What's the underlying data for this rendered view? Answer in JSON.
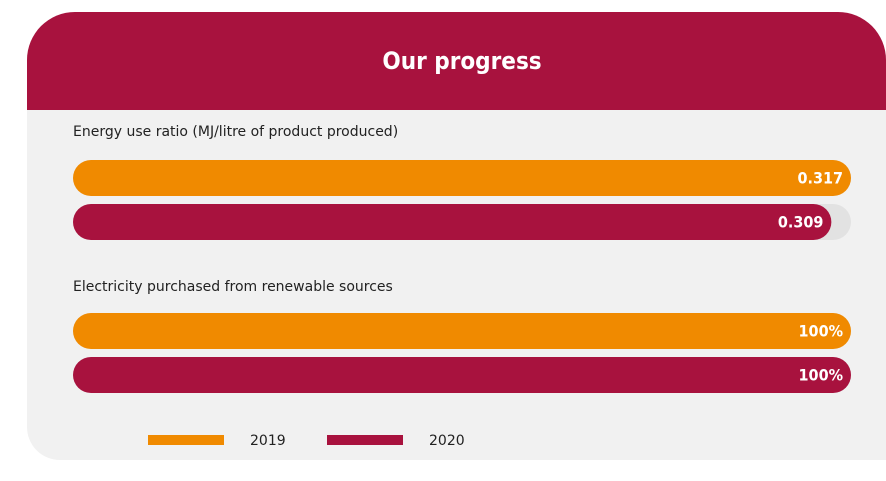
{
  "title": "Our progress",
  "chart_data": [
    {
      "type": "bar",
      "orientation": "horizontal",
      "title": "Energy use ratio (MJ/litre of product produced)",
      "xlim": [
        0,
        0.317
      ],
      "series": [
        {
          "name": "2019",
          "color": "#f08a00",
          "values": [
            0.317
          ]
        },
        {
          "name": "2020",
          "color": "#a8123e",
          "values": [
            0.309
          ]
        }
      ]
    },
    {
      "type": "bar",
      "orientation": "horizontal",
      "title": "Electricity purchased from renewable sources",
      "xlim": [
        0,
        100
      ],
      "series": [
        {
          "name": "2019",
          "color": "#f08a00",
          "values": [
            100
          ],
          "value_labels": [
            "100%"
          ]
        },
        {
          "name": "2020",
          "color": "#a8123e",
          "values": [
            100
          ],
          "value_labels": [
            "100%"
          ]
        }
      ]
    }
  ]
}
